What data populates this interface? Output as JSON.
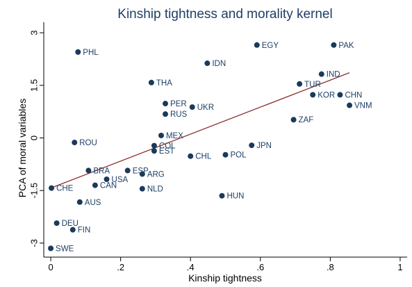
{
  "chart_data": {
    "type": "scatter",
    "title": "Kinship tightness and morality kernel",
    "xlabel": "Kinship tightness",
    "ylabel": "PCA of moral variables",
    "xlim": [
      -0.02,
      1.02
    ],
    "ylim": [
      -3.4,
      3.3
    ],
    "xticks": [
      0,
      0.2,
      0.4,
      0.6,
      0.8,
      1
    ],
    "xtick_labels": [
      "0",
      ".2",
      ".4",
      ".6",
      ".8",
      "1"
    ],
    "yticks": [
      -3,
      -1.5,
      0,
      1.5,
      3
    ],
    "ytick_labels": [
      "-3",
      "-1.5",
      "0",
      "1.5",
      "3"
    ],
    "grid": false,
    "marker_color": "#1a3a5c",
    "fit_line_color": "#8b2f2f",
    "fit_line": {
      "x": [
        0,
        0.855
      ],
      "y": [
        -1.43,
        1.86
      ]
    },
    "points": [
      {
        "label": "PHL",
        "x": 0.078,
        "y": 2.45
      },
      {
        "label": "EGY",
        "x": 0.59,
        "y": 2.65
      },
      {
        "label": "PAK",
        "x": 0.81,
        "y": 2.65
      },
      {
        "label": "IDN",
        "x": 0.448,
        "y": 2.13
      },
      {
        "label": "IND",
        "x": 0.775,
        "y": 1.82
      },
      {
        "label": "THA",
        "x": 0.288,
        "y": 1.58
      },
      {
        "label": "TUR",
        "x": 0.712,
        "y": 1.54
      },
      {
        "label": "KOR",
        "x": 0.75,
        "y": 1.23
      },
      {
        "label": "CHN",
        "x": 0.828,
        "y": 1.23
      },
      {
        "label": "PER",
        "x": 0.328,
        "y": 0.98
      },
      {
        "label": "UKR",
        "x": 0.405,
        "y": 0.88
      },
      {
        "label": "VNM",
        "x": 0.855,
        "y": 0.93
      },
      {
        "label": "RUS",
        "x": 0.328,
        "y": 0.68
      },
      {
        "label": "ZAF",
        "x": 0.695,
        "y": 0.52
      },
      {
        "label": "MEX",
        "x": 0.316,
        "y": 0.07
      },
      {
        "label": "ROU",
        "x": 0.068,
        "y": -0.13
      },
      {
        "label": "COL",
        "x": 0.296,
        "y": -0.22
      },
      {
        "label": "EST",
        "x": 0.296,
        "y": -0.37
      },
      {
        "label": "JPN",
        "x": 0.575,
        "y": -0.21
      },
      {
        "label": "CHL",
        "x": 0.4,
        "y": -0.52
      },
      {
        "label": "POL",
        "x": 0.5,
        "y": -0.48
      },
      {
        "label": "BRA",
        "x": 0.108,
        "y": -0.93
      },
      {
        "label": "ESP",
        "x": 0.22,
        "y": -0.93
      },
      {
        "label": "ARG",
        "x": 0.262,
        "y": -1.03
      },
      {
        "label": "USA",
        "x": 0.16,
        "y": -1.18
      },
      {
        "label": "CAN",
        "x": 0.127,
        "y": -1.35
      },
      {
        "label": "CHE",
        "x": 0.002,
        "y": -1.43
      },
      {
        "label": "NLD",
        "x": 0.262,
        "y": -1.45
      },
      {
        "label": "HUN",
        "x": 0.49,
        "y": -1.65
      },
      {
        "label": "AUS",
        "x": 0.083,
        "y": -1.83
      },
      {
        "label": "DEU",
        "x": 0.017,
        "y": -2.43
      },
      {
        "label": "FIN",
        "x": 0.063,
        "y": -2.62
      },
      {
        "label": "SWE",
        "x": 0.0,
        "y": -3.15
      }
    ]
  }
}
